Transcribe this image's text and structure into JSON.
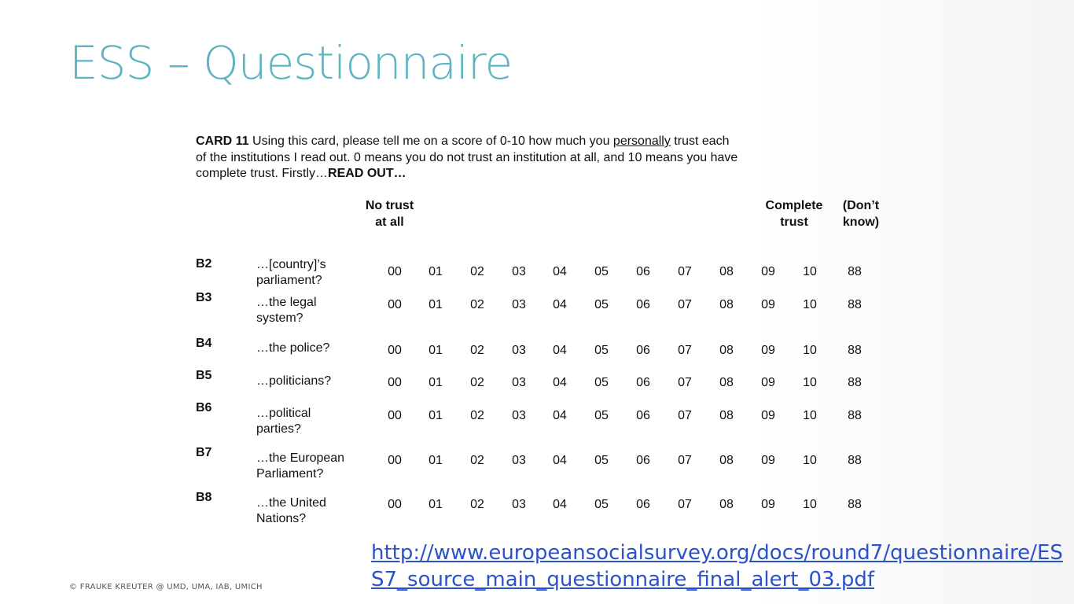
{
  "slide": {
    "title": "ESS – Questionnaire",
    "footer": "© FRAUKE KREUTER @ UMD, UMA, IAB,  UMICH",
    "link_text": "http://www.europeansocialsurvey.org/docs/round7/questionnaire/ESS7_source_main_questionnaire_final_alert_03.pdf"
  },
  "card": {
    "label": "CARD 11",
    "intro_part1": " Using this card, please tell me on a score of 0-10 how much you ",
    "intro_emph": "personally",
    "intro_part2": " trust each of the institutions I read out.  0 means you do not trust an institution at all, and 10 means you have complete trust.  Firstly…",
    "read_out": "READ OUT…"
  },
  "scale": {
    "header_low_1": "No trust",
    "header_low_2": "at all",
    "header_high_1": "Complete",
    "header_high_2": "trust",
    "header_dk_1": "(Don’t",
    "header_dk_2": "know)",
    "values": [
      "00",
      "01",
      "02",
      "03",
      "04",
      "05",
      "06",
      "07",
      "08",
      "09",
      "10",
      "88"
    ]
  },
  "items": [
    {
      "code": "B2",
      "line1": "…[country]’s",
      "line2": "parliament?"
    },
    {
      "code": "B3",
      "line1": "…the legal",
      "line2": "system?"
    },
    {
      "code": "B4",
      "line1": "…the police?",
      "line2": ""
    },
    {
      "code": "B5",
      "line1": "…politicians?",
      "line2": ""
    },
    {
      "code": "B6",
      "line1": "…political",
      "line2": "parties?"
    },
    {
      "code": "B7",
      "line1": "…the European",
      "line2": "Parliament?"
    },
    {
      "code": "B8",
      "line1": "…the United",
      "line2": "Nations?"
    }
  ]
}
